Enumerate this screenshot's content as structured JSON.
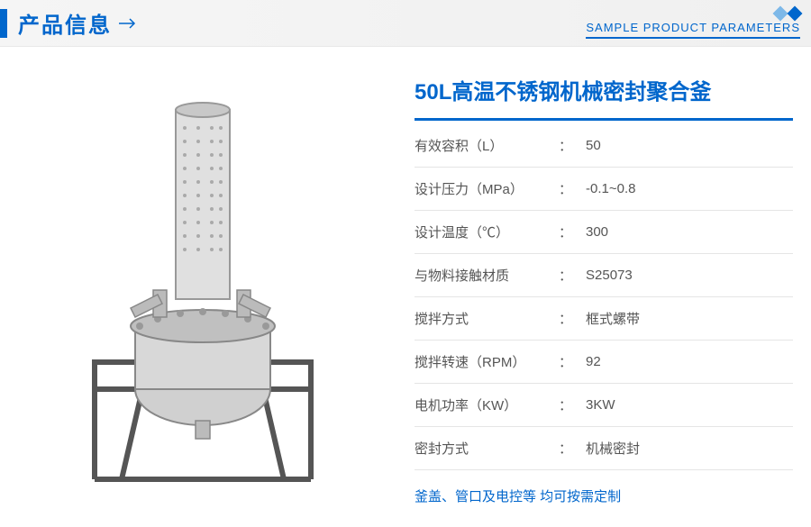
{
  "header": {
    "title": "产品信息",
    "subtitle": "SAMPLE PRODUCT PARAMETERS"
  },
  "product": {
    "title": "50L高温不锈钢机械密封聚合釜"
  },
  "specs": [
    {
      "label": "有效容积（L）",
      "value": "50"
    },
    {
      "label": "设计压力（MPa）",
      "value": "-0.1~0.8"
    },
    {
      "label": "设计温度（℃）",
      "value": "300"
    },
    {
      "label": "与物料接触材质",
      "value": "S25073"
    },
    {
      "label": "搅拌方式",
      "value": "框式螺带"
    },
    {
      "label": "搅拌转速（RPM）",
      "value": "92"
    },
    {
      "label": "电机功率（KW）",
      "value": "3KW"
    },
    {
      "label": "密封方式",
      "value": "机械密封"
    }
  ],
  "footer_note": "釜盖、管口及电控等 均可按需定制",
  "colors": {
    "primary": "#0066cc",
    "light_blue": "#7db8e8",
    "text": "#555555",
    "divider": "#e5e5e5",
    "header_bg": "#f5f5f5"
  }
}
